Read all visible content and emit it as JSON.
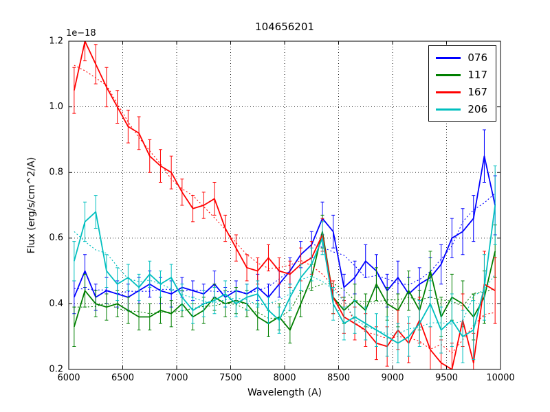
{
  "chart_data": {
    "type": "line",
    "title": "104656201",
    "xlabel": "Wavelength (A)",
    "ylabel": "Flux (erg/s/cm^2/A)",
    "y_offset_label": "1e−18",
    "xlim": [
      6000,
      10000
    ],
    "ylim": [
      0.2,
      1.2
    ],
    "xticks": [
      6000,
      6500,
      7000,
      7500,
      8000,
      8500,
      9000,
      9500,
      10000
    ],
    "yticks": [
      0.2,
      0.4,
      0.6,
      0.8,
      1.0,
      1.2
    ],
    "grid": true,
    "legend_position": "upper right",
    "x": [
      6050,
      6150,
      6250,
      6350,
      6450,
      6550,
      6650,
      6750,
      6850,
      6950,
      7050,
      7150,
      7250,
      7350,
      7450,
      7550,
      7650,
      7750,
      7850,
      7950,
      8050,
      8150,
      8250,
      8350,
      8450,
      8550,
      8650,
      8750,
      8850,
      8950,
      9050,
      9150,
      9250,
      9350,
      9450,
      9550,
      9650,
      9750,
      9850,
      9950
    ],
    "series": [
      {
        "name": "076",
        "color": "#0000ff",
        "values": [
          0.42,
          0.5,
          0.42,
          0.44,
          0.43,
          0.42,
          0.44,
          0.46,
          0.44,
          0.43,
          0.45,
          0.44,
          0.43,
          0.46,
          0.42,
          0.44,
          0.43,
          0.45,
          0.42,
          0.46,
          0.5,
          0.55,
          0.58,
          0.66,
          0.62,
          0.45,
          0.48,
          0.53,
          0.5,
          0.44,
          0.48,
          0.43,
          0.46,
          0.48,
          0.52,
          0.6,
          0.62,
          0.66,
          0.85,
          0.7
        ],
        "errors": [
          0.05,
          0.05,
          0.04,
          0.04,
          0.04,
          0.04,
          0.04,
          0.04,
          0.04,
          0.04,
          0.03,
          0.03,
          0.03,
          0.04,
          0.03,
          0.03,
          0.03,
          0.04,
          0.04,
          0.04,
          0.04,
          0.04,
          0.04,
          0.05,
          0.05,
          0.04,
          0.05,
          0.05,
          0.05,
          0.05,
          0.05,
          0.05,
          0.05,
          0.06,
          0.06,
          0.06,
          0.07,
          0.07,
          0.08,
          0.09
        ]
      },
      {
        "name": "117",
        "color": "#007f00",
        "values": [
          0.33,
          0.44,
          0.4,
          0.39,
          0.4,
          0.38,
          0.36,
          0.36,
          0.38,
          0.37,
          0.4,
          0.36,
          0.38,
          0.42,
          0.4,
          0.41,
          0.4,
          0.36,
          0.34,
          0.36,
          0.32,
          0.4,
          0.48,
          0.62,
          0.42,
          0.38,
          0.41,
          0.38,
          0.46,
          0.4,
          0.38,
          0.44,
          0.38,
          0.5,
          0.36,
          0.42,
          0.4,
          0.36,
          0.42,
          0.56
        ],
        "errors": [
          0.06,
          0.05,
          0.04,
          0.04,
          0.04,
          0.04,
          0.04,
          0.04,
          0.04,
          0.04,
          0.04,
          0.04,
          0.04,
          0.04,
          0.04,
          0.04,
          0.04,
          0.04,
          0.04,
          0.04,
          0.04,
          0.04,
          0.04,
          0.05,
          0.05,
          0.04,
          0.05,
          0.05,
          0.05,
          0.05,
          0.05,
          0.06,
          0.06,
          0.06,
          0.06,
          0.07,
          0.07,
          0.07,
          0.08,
          0.08
        ]
      },
      {
        "name": "167",
        "color": "#ff0000",
        "values": [
          1.05,
          1.2,
          1.13,
          1.06,
          1.0,
          0.94,
          0.92,
          0.85,
          0.82,
          0.8,
          0.74,
          0.69,
          0.7,
          0.72,
          0.63,
          0.57,
          0.51,
          0.5,
          0.54,
          0.5,
          0.49,
          0.52,
          0.54,
          0.61,
          0.42,
          0.36,
          0.34,
          0.32,
          0.28,
          0.27,
          0.32,
          0.28,
          0.35,
          0.26,
          0.22,
          0.2,
          0.35,
          0.22,
          0.46,
          0.44
        ],
        "errors": [
          0.07,
          0.06,
          0.06,
          0.06,
          0.05,
          0.05,
          0.05,
          0.05,
          0.05,
          0.05,
          0.04,
          0.04,
          0.04,
          0.05,
          0.04,
          0.04,
          0.04,
          0.04,
          0.04,
          0.04,
          0.04,
          0.05,
          0.05,
          0.05,
          0.05,
          0.05,
          0.05,
          0.05,
          0.05,
          0.06,
          0.06,
          0.06,
          0.07,
          0.07,
          0.07,
          0.08,
          0.08,
          0.09,
          0.1,
          0.1
        ]
      },
      {
        "name": "206",
        "color": "#00bfbf",
        "values": [
          0.53,
          0.65,
          0.68,
          0.5,
          0.46,
          0.48,
          0.45,
          0.49,
          0.46,
          0.48,
          0.42,
          0.38,
          0.4,
          0.41,
          0.43,
          0.4,
          0.42,
          0.43,
          0.38,
          0.35,
          0.42,
          0.48,
          0.52,
          0.6,
          0.4,
          0.34,
          0.36,
          0.34,
          0.32,
          0.3,
          0.28,
          0.3,
          0.34,
          0.4,
          0.32,
          0.35,
          0.3,
          0.32,
          0.45,
          0.7
        ],
        "errors": [
          0.06,
          0.06,
          0.05,
          0.05,
          0.05,
          0.04,
          0.04,
          0.04,
          0.04,
          0.04,
          0.04,
          0.04,
          0.04,
          0.04,
          0.04,
          0.04,
          0.04,
          0.04,
          0.04,
          0.04,
          0.04,
          0.04,
          0.05,
          0.05,
          0.05,
          0.05,
          0.05,
          0.05,
          0.05,
          0.06,
          0.06,
          0.06,
          0.07,
          0.07,
          0.07,
          0.08,
          0.08,
          0.09,
          0.1,
          0.12
        ]
      }
    ]
  }
}
